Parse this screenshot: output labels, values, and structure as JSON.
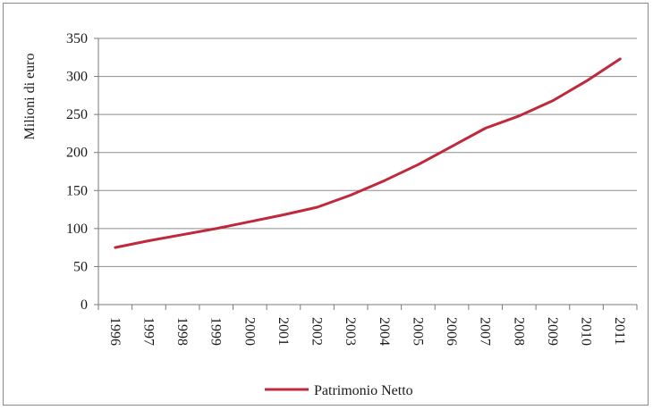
{
  "chart_data": {
    "type": "line",
    "title": "",
    "xlabel": "",
    "ylabel": "Milioni di euro",
    "ylim": [
      0,
      350
    ],
    "yticks": [
      "0",
      "50",
      "100",
      "150",
      "200",
      "250",
      "300",
      "350"
    ],
    "categories": [
      "1996",
      "1997",
      "1998",
      "1999",
      "2000",
      "2001",
      "2002",
      "2003",
      "2004",
      "2005",
      "2006",
      "2007",
      "2008",
      "2009",
      "2010",
      "2011"
    ],
    "series": [
      {
        "name": "Patrimonio Netto",
        "color": "#c0283c",
        "values": [
          75,
          84,
          92,
          100,
          109,
          118,
          128,
          144,
          163,
          184,
          208,
          232,
          248,
          268,
          294,
          323
        ]
      }
    ],
    "grid": true,
    "legend_position": "bottom"
  }
}
